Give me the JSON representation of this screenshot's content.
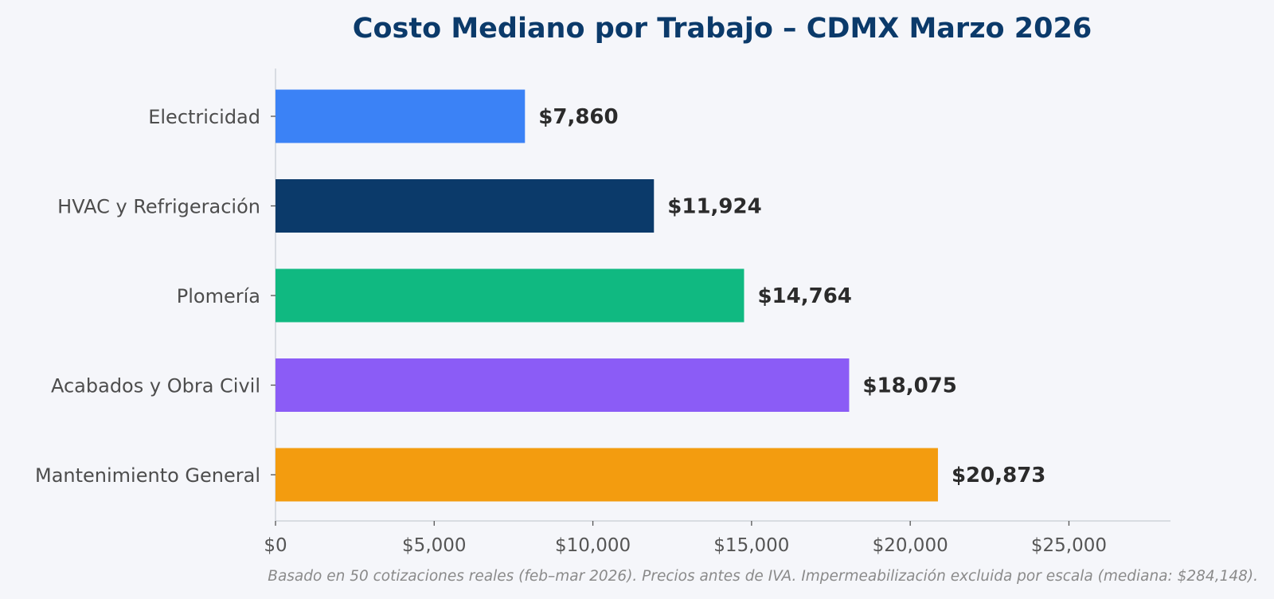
{
  "chart_data": {
    "type": "bar",
    "orientation": "horizontal",
    "title": "Costo Mediano por Trabajo – CDMX Marzo 2026",
    "categories": [
      "Electricidad",
      "HVAC y Refrigeración",
      "Plomería",
      "Acabados y Obra Civil",
      "Mantenimiento General"
    ],
    "values": [
      7860,
      11924,
      14764,
      18075,
      20873
    ],
    "value_labels": [
      "$7,860",
      "$11,924",
      "$14,764",
      "$18,075",
      "$20,873"
    ],
    "colors": [
      "#3b82f6",
      "#0b3a6a",
      "#10b981",
      "#8b5cf6",
      "#f39c0f"
    ],
    "xlim": [
      0,
      28200
    ],
    "xticks": [
      0,
      5000,
      10000,
      15000,
      20000,
      25000
    ],
    "xtick_labels": [
      "$0",
      "$5,000",
      "$10,000",
      "$15,000",
      "$20,000",
      "$25,000"
    ],
    "xlabel": "",
    "ylabel": "",
    "grid": false,
    "footnote": "Basado en 50 cotizaciones reales (feb–mar 2026). Precios antes de IVA. Impermeabilización excluida por escala (mediana: $284,148)."
  }
}
